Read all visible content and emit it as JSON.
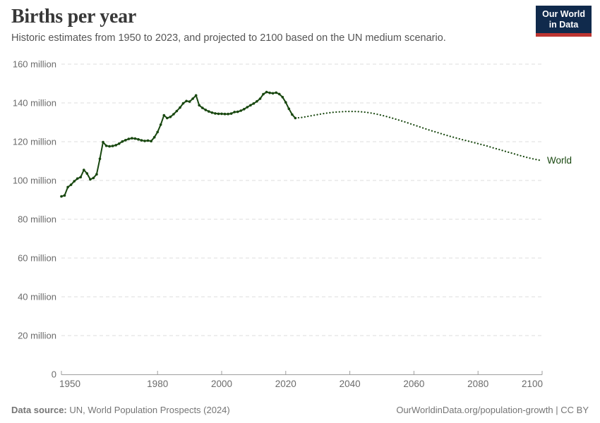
{
  "header": {
    "title": "Births per year",
    "subtitle": "Historic estimates from 1950 to 2023, and projected to 2100 based on the UN medium scenario."
  },
  "logo": {
    "line1": "Our World",
    "line2": "in Data",
    "bg_color": "#102a4c",
    "accent_color": "#bd3531"
  },
  "chart_data": {
    "type": "line",
    "title": "Births per year",
    "entity_label": "World",
    "unit": "million",
    "xlim": [
      1950,
      2100
    ],
    "ylim": [
      0,
      160
    ],
    "grid": true,
    "legend_position": "end-of-line",
    "colors": {
      "line": "#18470f",
      "grid": "#dddddd",
      "axis": "#9e9e9e",
      "tick_label": "#6b6b6b"
    },
    "xticks": [
      1950,
      1980,
      2000,
      2020,
      2040,
      2060,
      2080,
      2100
    ],
    "yticks": [
      {
        "v": 0,
        "label": "0"
      },
      {
        "v": 20,
        "label": "20 million"
      },
      {
        "v": 40,
        "label": "40 million"
      },
      {
        "v": 60,
        "label": "60 million"
      },
      {
        "v": 80,
        "label": "80 million"
      },
      {
        "v": 100,
        "label": "100 million"
      },
      {
        "v": 120,
        "label": "120 million"
      },
      {
        "v": 140,
        "label": "140 million"
      },
      {
        "v": 160,
        "label": "160 million"
      }
    ],
    "series": [
      {
        "name": "World — historic estimates (1950–2023)",
        "style": "solid",
        "x": [
          1950,
          1951,
          1952,
          1953,
          1954,
          1955,
          1956,
          1957,
          1958,
          1959,
          1960,
          1961,
          1962,
          1963,
          1964,
          1965,
          1966,
          1967,
          1968,
          1969,
          1970,
          1971,
          1972,
          1973,
          1974,
          1975,
          1976,
          1977,
          1978,
          1979,
          1980,
          1981,
          1982,
          1983,
          1984,
          1985,
          1986,
          1987,
          1988,
          1989,
          1990,
          1991,
          1992,
          1993,
          1994,
          1995,
          1996,
          1997,
          1998,
          1999,
          2000,
          2001,
          2002,
          2003,
          2004,
          2005,
          2006,
          2007,
          2008,
          2009,
          2010,
          2011,
          2012,
          2013,
          2014,
          2015,
          2016,
          2017,
          2018,
          2019,
          2020,
          2021,
          2022,
          2023
        ],
        "y": [
          91.8,
          92.3,
          96.6,
          97.8,
          99.6,
          101.0,
          101.7,
          105.4,
          103.6,
          100.6,
          101.3,
          103.2,
          111.2,
          119.8,
          117.9,
          117.6,
          117.8,
          118.2,
          119.0,
          120.1,
          120.8,
          121.4,
          121.8,
          121.6,
          121.2,
          120.7,
          120.4,
          120.6,
          120.3,
          122.3,
          125.0,
          128.8,
          133.6,
          132.2,
          132.8,
          134.2,
          135.8,
          137.6,
          139.8,
          141.0,
          140.7,
          142.2,
          143.9,
          138.8,
          137.4,
          136.4,
          135.6,
          135.0,
          134.6,
          134.4,
          134.4,
          134.3,
          134.3,
          134.5,
          135.3,
          135.4,
          136.0,
          136.8,
          137.8,
          138.8,
          139.7,
          140.8,
          142.2,
          144.5,
          145.6,
          145.2,
          145.0,
          145.3,
          144.6,
          143.0,
          140.3,
          137.0,
          134.0,
          132.2
        ]
      },
      {
        "name": "World — UN medium scenario projection (2024–2100)",
        "style": "dotted",
        "x": [
          2023,
          2025,
          2027,
          2029,
          2031,
          2033,
          2035,
          2037,
          2039,
          2041,
          2043,
          2045,
          2047,
          2049,
          2051,
          2053,
          2055,
          2057,
          2059,
          2061,
          2063,
          2065,
          2067,
          2069,
          2071,
          2073,
          2075,
          2077,
          2079,
          2081,
          2083,
          2085,
          2087,
          2089,
          2091,
          2093,
          2095,
          2097,
          2099,
          2100
        ],
        "y": [
          132.2,
          132.5,
          133.1,
          133.7,
          134.3,
          134.8,
          135.2,
          135.4,
          135.6,
          135.6,
          135.5,
          135.2,
          134.7,
          134.0,
          133.2,
          132.3,
          131.3,
          130.3,
          129.2,
          128.1,
          127.0,
          125.9,
          124.9,
          123.9,
          122.9,
          122.0,
          121.1,
          120.3,
          119.4,
          118.6,
          117.7,
          116.7,
          115.8,
          114.8,
          113.9,
          112.9,
          112.0,
          111.2,
          110.5,
          110.3
        ]
      }
    ]
  },
  "footer": {
    "source_label": "Data source:",
    "source_text": "UN, World Population Prospects (2024)",
    "credit": "OurWorldinData.org/population-growth | CC BY"
  }
}
